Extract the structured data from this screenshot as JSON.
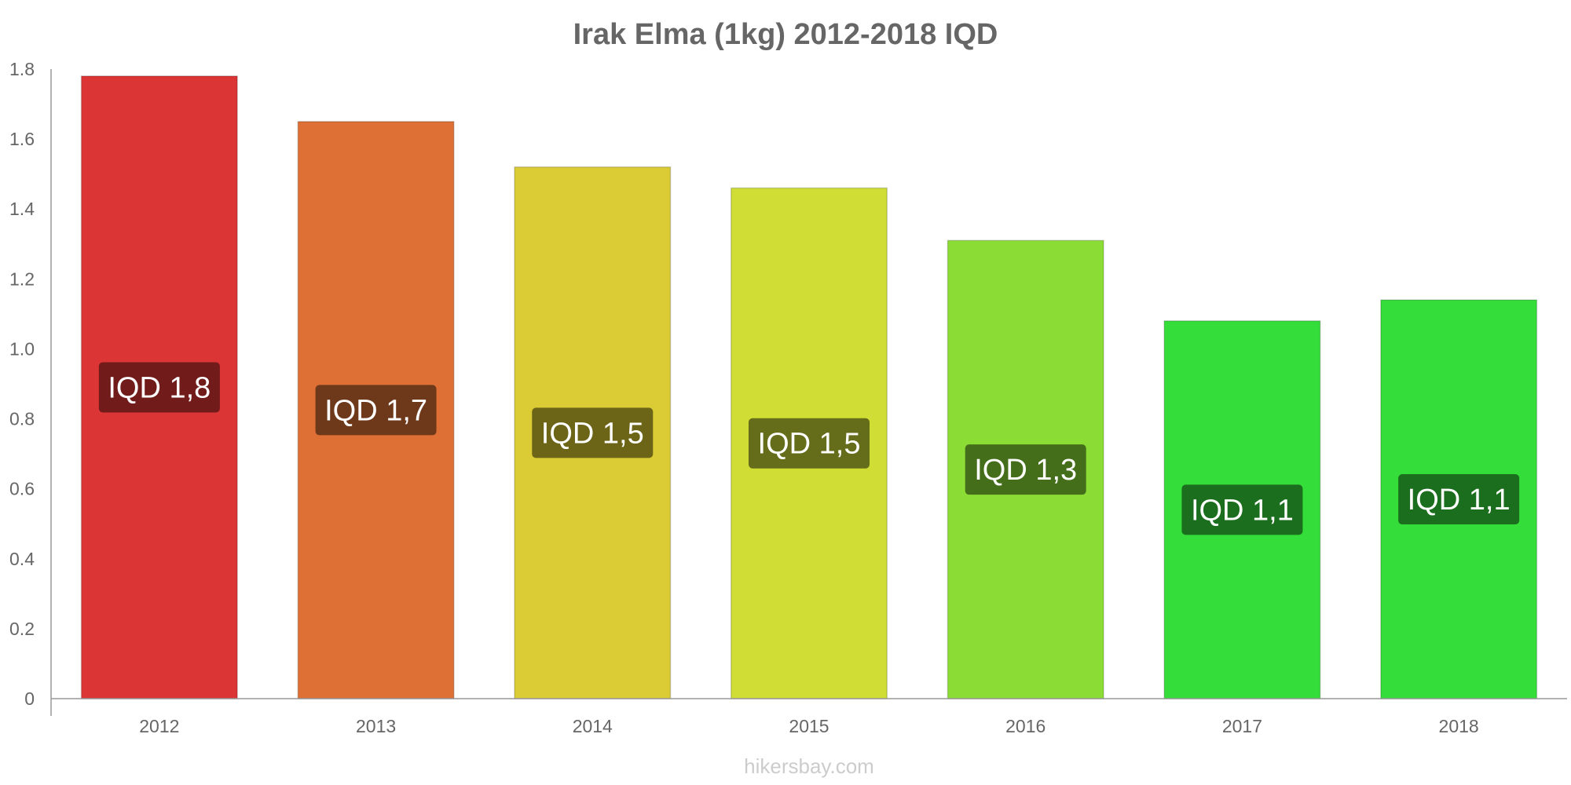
{
  "chart_data": {
    "type": "bar",
    "title": "Irak Elma (1kg) 2012-2018 IQD",
    "categories": [
      "2012",
      "2013",
      "2014",
      "2015",
      "2016",
      "2017",
      "2018"
    ],
    "values": [
      1.78,
      1.65,
      1.52,
      1.46,
      1.31,
      1.08,
      1.14
    ],
    "data_labels": [
      "IQD 1,8",
      "IQD 1,7",
      "IQD 1,5",
      "IQD 1,5",
      "IQD 1,3",
      "IQD 1,1",
      "IQD 1,1"
    ],
    "bar_colors": [
      "#dc3535",
      "#de7035",
      "#dbcc35",
      "#cfdd35",
      "#8bdd35",
      "#35dd3a",
      "#35dd3a"
    ],
    "label_bg_colors": [
      "#711b1b",
      "#6e381a",
      "#6c6518",
      "#666d1a",
      "#456e1a",
      "#1b6e1d",
      "#1b6e1d"
    ],
    "yticks": [
      "0",
      "0.2",
      "0.4",
      "0.6",
      "0.8",
      "1.0",
      "1.2",
      "1.4",
      "1.6",
      "1.8"
    ],
    "ylim": [
      0,
      1.8
    ],
    "xlabel": "",
    "ylabel": "",
    "grid": false,
    "legend": "none"
  },
  "watermark": "hikersbay.com",
  "colors": {
    "axis": "#999999",
    "text": "#666666",
    "watermark": "#cccccc"
  }
}
